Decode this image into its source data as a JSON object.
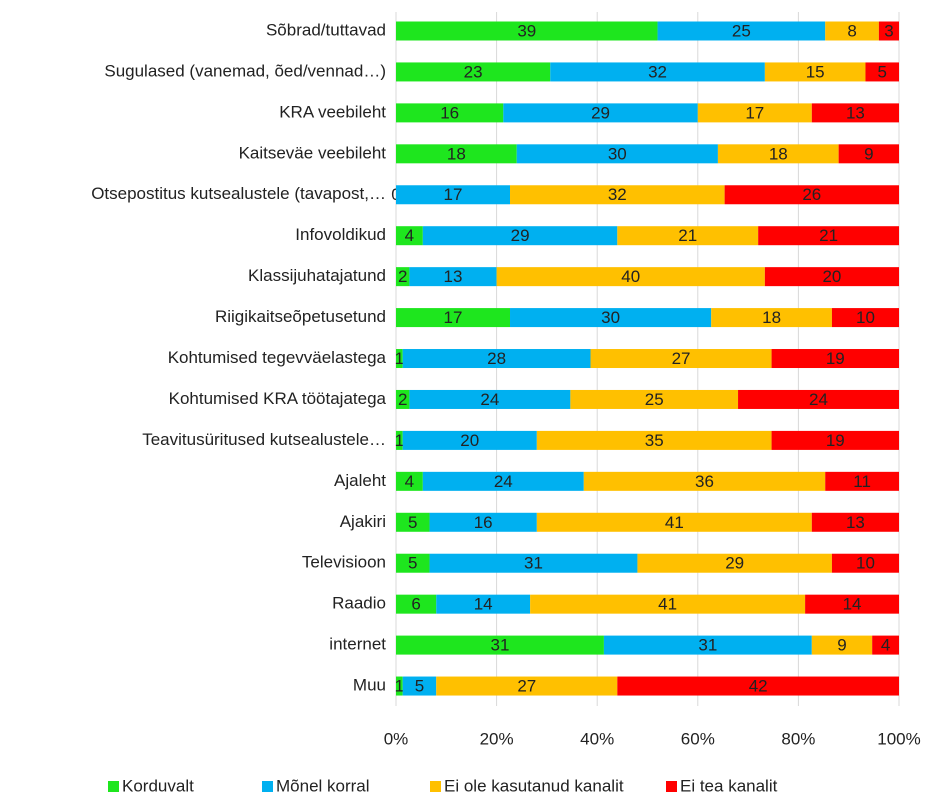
{
  "chart_data": {
    "type": "bar",
    "orientation": "horizontal",
    "stacked": "percent",
    "categories": [
      "Sõbrad/tuttavad",
      "Sugulased (vanemad, õed/vennad…)",
      "KRA veebileht",
      "Kaitseväe veebileht",
      "Otsepostitus kutsealustele (tavapost,…",
      "Infovoldikud",
      "Klassijuhatajatund",
      "Riigikaitseõpetusetund",
      "Kohtumised tegevväelastega",
      "Kohtumised KRA töötajatega",
      "Teavitusüritused kutsealustele…",
      "Ajaleht",
      "Ajakiri",
      "Televisioon",
      "Raadio",
      "internet",
      "Muu"
    ],
    "series": [
      {
        "name": "Korduvalt",
        "color": "#1ee61e",
        "values": [
          39,
          23,
          16,
          18,
          0,
          4,
          2,
          17,
          1,
          2,
          1,
          4,
          5,
          5,
          6,
          31,
          1
        ]
      },
      {
        "name": "Mõnel korral",
        "color": "#00b0f0",
        "values": [
          25,
          32,
          29,
          30,
          17,
          29,
          13,
          30,
          28,
          24,
          20,
          24,
          16,
          31,
          14,
          31,
          5
        ]
      },
      {
        "name": "Ei ole kasutanud kanalit",
        "color": "#ffc000",
        "values": [
          8,
          15,
          17,
          18,
          32,
          21,
          40,
          18,
          27,
          25,
          35,
          36,
          41,
          29,
          41,
          9,
          27
        ]
      },
      {
        "name": "Ei tea kanalit",
        "color": "#ff0000",
        "values": [
          3,
          5,
          13,
          9,
          26,
          21,
          20,
          10,
          19,
          24,
          19,
          11,
          13,
          10,
          14,
          4,
          42
        ]
      }
    ],
    "xlim": [
      0,
      100
    ],
    "xticks": [
      {
        "value": 0,
        "label": "0%"
      },
      {
        "value": 20,
        "label": "20%"
      },
      {
        "value": 40,
        "label": "40%"
      },
      {
        "value": 60,
        "label": "60%"
      },
      {
        "value": 80,
        "label": "80%"
      },
      {
        "value": 100,
        "label": "100%"
      }
    ],
    "grid": true,
    "legend": "bottom"
  }
}
